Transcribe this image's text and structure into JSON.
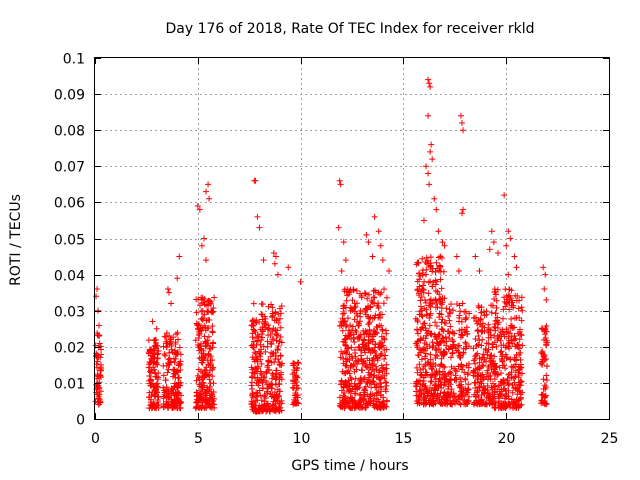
{
  "chart_data": {
    "type": "scatter",
    "title": "Day 176 of 2018, Rate Of TEC Index for receiver rkld",
    "xlabel": "GPS time / hours",
    "ylabel": "ROTI / TECUs",
    "xlim": [
      0,
      25
    ],
    "ylim": [
      0,
      0.1
    ],
    "xticks": [
      0,
      5,
      10,
      15,
      20,
      25
    ],
    "xtick_labels": [
      "0",
      "5",
      "10",
      "15",
      "20",
      "25"
    ],
    "yticks": [
      0,
      0.01,
      0.02,
      0.03,
      0.04,
      0.05,
      0.06,
      0.07,
      0.08,
      0.09,
      0.1
    ],
    "ytick_labels": [
      "0",
      "0.01",
      "0.02",
      "0.03",
      "0.04",
      "0.05",
      "0.06",
      "0.07",
      "0.08",
      "0.09",
      "0.1"
    ],
    "grid": true,
    "marker": "plus",
    "color": "#ff0000",
    "series": [
      {
        "name": "ROTI",
        "clusters": [
          {
            "x_range": [
              0.0,
              0.3
            ],
            "y_range": [
              0.004,
              0.026
            ],
            "n": 60
          },
          {
            "x_range": [
              2.6,
              3.1
            ],
            "y_range": [
              0.003,
              0.022
            ],
            "n": 120
          },
          {
            "x_range": [
              3.3,
              4.2
            ],
            "y_range": [
              0.003,
              0.024
            ],
            "n": 170
          },
          {
            "x_range": [
              4.9,
              5.8
            ],
            "y_range": [
              0.003,
              0.034
            ],
            "n": 230
          },
          {
            "x_range": [
              7.6,
              9.1
            ],
            "y_range": [
              0.002,
              0.032
            ],
            "n": 320
          },
          {
            "x_range": [
              9.6,
              9.9
            ],
            "y_range": [
              0.004,
              0.016
            ],
            "n": 50
          },
          {
            "x_range": [
              11.9,
              14.2
            ],
            "y_range": [
              0.003,
              0.036
            ],
            "n": 520
          },
          {
            "x_range": [
              15.6,
              17.0
            ],
            "y_range": [
              0.004,
              0.045
            ],
            "n": 360
          },
          {
            "x_range": [
              17.0,
              18.2
            ],
            "y_range": [
              0.004,
              0.032
            ],
            "n": 200
          },
          {
            "x_range": [
              18.4,
              19.4
            ],
            "y_range": [
              0.004,
              0.032
            ],
            "n": 190
          },
          {
            "x_range": [
              19.4,
              20.8
            ],
            "y_range": [
              0.003,
              0.036
            ],
            "n": 300
          },
          {
            "x_range": [
              21.7,
              22.0
            ],
            "y_range": [
              0.004,
              0.028
            ],
            "n": 60
          }
        ],
        "outliers": [
          [
            0.1,
            0.036
          ],
          [
            0.05,
            0.034
          ],
          [
            0.15,
            0.03
          ],
          [
            2.8,
            0.027
          ],
          [
            3.0,
            0.025
          ],
          [
            3.55,
            0.036
          ],
          [
            3.6,
            0.035
          ],
          [
            3.7,
            0.032
          ],
          [
            4.1,
            0.045
          ],
          [
            4.0,
            0.039
          ],
          [
            5.0,
            0.059
          ],
          [
            5.1,
            0.058
          ],
          [
            5.4,
            0.063
          ],
          [
            5.5,
            0.065
          ],
          [
            5.55,
            0.061
          ],
          [
            5.3,
            0.05
          ],
          [
            5.2,
            0.048
          ],
          [
            5.4,
            0.044
          ],
          [
            7.75,
            0.066
          ],
          [
            7.8,
            0.066
          ],
          [
            7.9,
            0.056
          ],
          [
            8.0,
            0.053
          ],
          [
            8.2,
            0.044
          ],
          [
            8.7,
            0.046
          ],
          [
            8.75,
            0.043
          ],
          [
            8.8,
            0.045
          ],
          [
            9.4,
            0.042
          ],
          [
            10.0,
            0.038
          ],
          [
            8.9,
            0.04
          ],
          [
            11.9,
            0.066
          ],
          [
            11.95,
            0.065
          ],
          [
            11.85,
            0.053
          ],
          [
            12.1,
            0.049
          ],
          [
            12.2,
            0.044
          ],
          [
            12.0,
            0.041
          ],
          [
            13.2,
            0.051
          ],
          [
            13.3,
            0.049
          ],
          [
            13.6,
            0.056
          ],
          [
            13.8,
            0.052
          ],
          [
            13.9,
            0.048
          ],
          [
            14.0,
            0.044
          ],
          [
            13.5,
            0.045
          ],
          [
            14.3,
            0.041
          ],
          [
            16.2,
            0.094
          ],
          [
            16.25,
            0.093
          ],
          [
            16.3,
            0.092
          ],
          [
            16.2,
            0.084
          ],
          [
            16.35,
            0.076
          ],
          [
            16.3,
            0.074
          ],
          [
            16.4,
            0.072
          ],
          [
            16.1,
            0.07
          ],
          [
            16.2,
            0.068
          ],
          [
            16.25,
            0.065
          ],
          [
            16.5,
            0.061
          ],
          [
            16.6,
            0.058
          ],
          [
            16.0,
            0.055
          ],
          [
            16.7,
            0.052
          ],
          [
            16.9,
            0.049
          ],
          [
            17.0,
            0.048
          ],
          [
            16.8,
            0.045
          ],
          [
            17.8,
            0.084
          ],
          [
            17.85,
            0.082
          ],
          [
            17.9,
            0.08
          ],
          [
            17.9,
            0.058
          ],
          [
            17.85,
            0.057
          ],
          [
            17.6,
            0.045
          ],
          [
            17.7,
            0.041
          ],
          [
            18.5,
            0.045
          ],
          [
            18.7,
            0.041
          ],
          [
            19.3,
            0.052
          ],
          [
            19.4,
            0.049
          ],
          [
            19.2,
            0.047
          ],
          [
            19.6,
            0.046
          ],
          [
            19.9,
            0.062
          ],
          [
            20.1,
            0.052
          ],
          [
            20.2,
            0.05
          ],
          [
            20.0,
            0.048
          ],
          [
            20.4,
            0.045
          ],
          [
            20.5,
            0.042
          ],
          [
            20.1,
            0.04
          ],
          [
            21.8,
            0.042
          ],
          [
            21.9,
            0.04
          ],
          [
            21.85,
            0.036
          ],
          [
            21.95,
            0.033
          ]
        ]
      }
    ]
  }
}
